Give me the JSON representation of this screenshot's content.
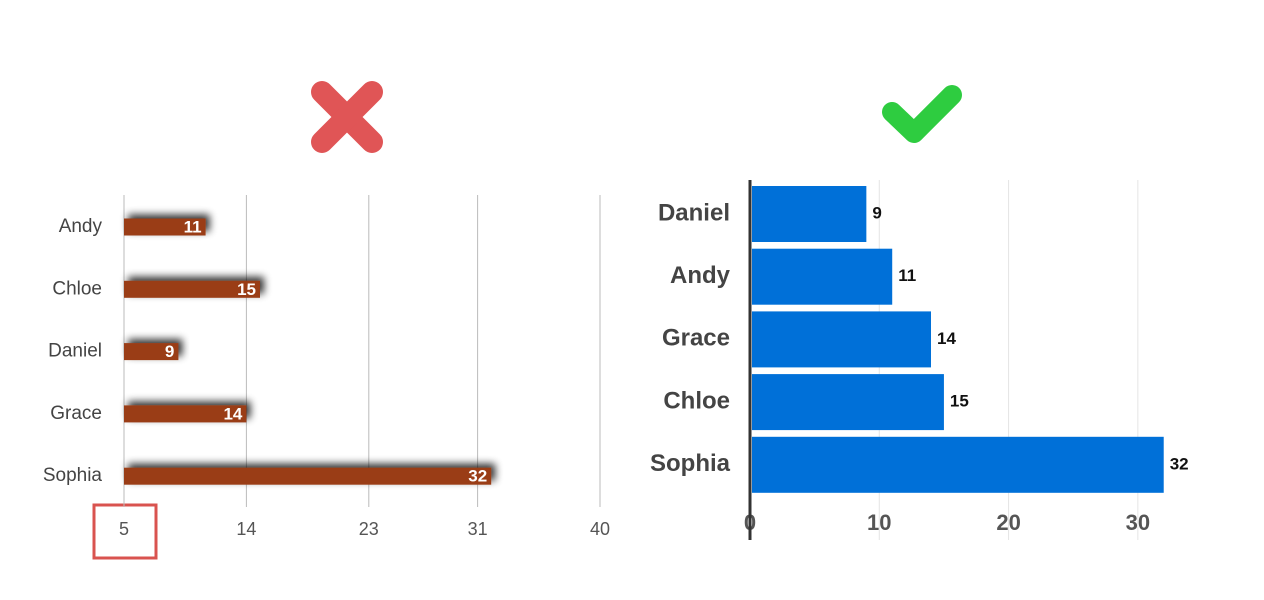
{
  "chart_data": [
    {
      "type": "bar",
      "categories": [
        "Andy",
        "Chloe",
        "Daniel",
        "Grace",
        "Sophia"
      ],
      "values": [
        11,
        15,
        9,
        14,
        32
      ],
      "color": "#9a3c18",
      "xlim": [
        5,
        40
      ],
      "xticks": [
        5,
        14,
        23,
        31,
        40
      ],
      "grid": true
    },
    {
      "type": "bar",
      "categories": [
        "Daniel",
        "Andy",
        "Grace",
        "Chloe",
        "Sophia"
      ],
      "values": [
        9,
        11,
        14,
        15,
        32
      ],
      "color": "#0070d8",
      "xlim": [
        0,
        35
      ],
      "xticks": [
        0,
        10,
        20,
        30
      ],
      "grid": true
    }
  ]
}
